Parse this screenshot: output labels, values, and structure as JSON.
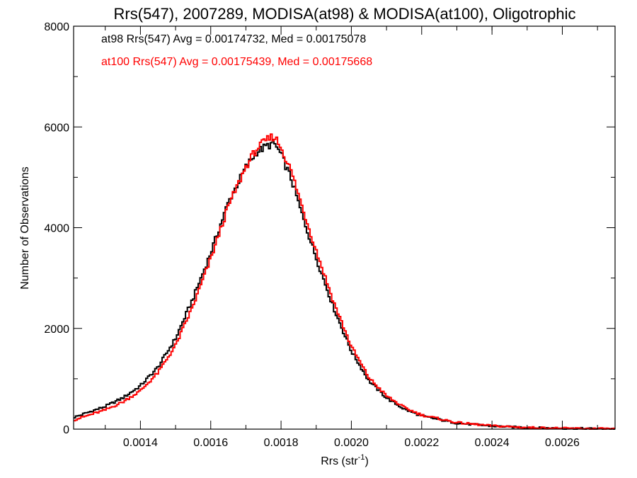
{
  "chart_data": {
    "type": "line",
    "title": "Rrs(547), 2007289, MODISA(at98) & MODISA(at100), Oligotrophic",
    "xlabel_main": "Rrs (str",
    "xlabel_sup": "-1",
    "xlabel_close": ")",
    "ylabel": "Number of Observations",
    "xlim": [
      0.00121,
      0.00275
    ],
    "ylim": [
      0,
      8000
    ],
    "x_ticks": [
      "0.0014",
      "0.0016",
      "0.0018",
      "0.0020",
      "0.0022",
      "0.0024",
      "0.0026"
    ],
    "y_ticks": [
      "0",
      "2000",
      "4000",
      "6000",
      "8000"
    ],
    "x_tick_values": [
      0.0014,
      0.0016,
      0.0018,
      0.002,
      0.0022,
      0.0024,
      0.0026
    ],
    "y_tick_values": [
      0,
      2000,
      4000,
      6000,
      8000
    ],
    "grid": false,
    "plot_style": "histogram-step",
    "annotations": [
      "at98 Rrs(547) Avg = 0.00174732, Med = 0.00175078",
      "at100 Rrs(547) Avg = 0.00175439, Med = 0.00175668"
    ],
    "series": [
      {
        "color": "#000000",
        "x": [
          0.00121,
          0.00125,
          0.0013,
          0.00135,
          0.0014,
          0.00145,
          0.0015,
          0.00155,
          0.0016,
          0.00165,
          0.0017,
          0.00173,
          0.00176,
          0.00178,
          0.0018,
          0.00183,
          0.00186,
          0.0019,
          0.00195,
          0.002,
          0.00205,
          0.0021,
          0.00215,
          0.0022,
          0.0023,
          0.0024,
          0.0025,
          0.0026,
          0.00275
        ],
        "y": [
          230,
          330,
          450,
          620,
          860,
          1230,
          1800,
          2600,
          3500,
          4500,
          5200,
          5500,
          5620,
          5680,
          5450,
          4950,
          4250,
          3400,
          2400,
          1550,
          960,
          620,
          400,
          260,
          120,
          60,
          30,
          15,
          5
        ]
      },
      {
        "color": "#ff0000",
        "x": [
          0.00121,
          0.00125,
          0.0013,
          0.00135,
          0.0014,
          0.00145,
          0.0015,
          0.00155,
          0.0016,
          0.00165,
          0.0017,
          0.00173,
          0.00176,
          0.00178,
          0.0018,
          0.00183,
          0.00186,
          0.0019,
          0.00195,
          0.002,
          0.00205,
          0.0021,
          0.00215,
          0.0022,
          0.0023,
          0.0024,
          0.0025,
          0.0026,
          0.00275
        ],
        "y": [
          180,
          270,
          380,
          540,
          760,
          1120,
          1660,
          2450,
          3380,
          4420,
          5210,
          5560,
          5740,
          5820,
          5600,
          5100,
          4420,
          3550,
          2520,
          1640,
          1020,
          660,
          430,
          280,
          130,
          65,
          32,
          16,
          6
        ]
      }
    ]
  }
}
